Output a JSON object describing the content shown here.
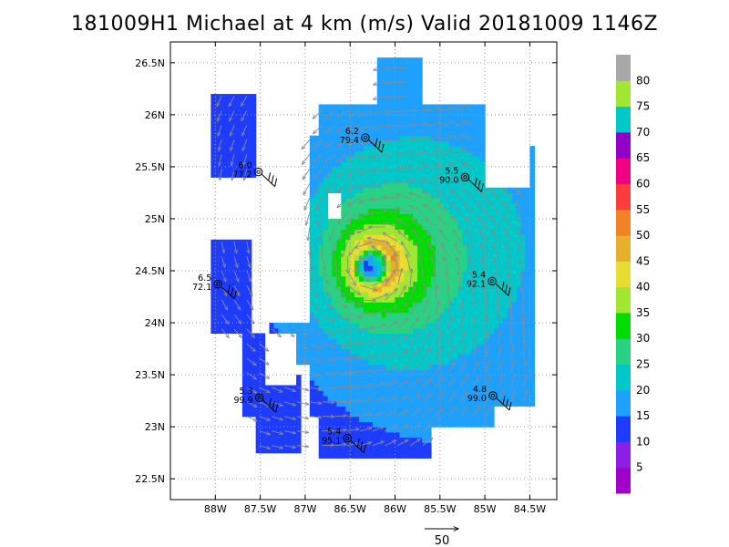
{
  "chart_data": {
    "type": "heatmap",
    "title": "181009H1 Michael at 4 km (m/s) Valid 20181009 1146Z",
    "xlabel": "",
    "ylabel": "",
    "xlim": [
      -88.5,
      -84.2
    ],
    "ylim": [
      22.3,
      26.7
    ],
    "x_ticks": [
      {
        "value": -88.0,
        "label": "88W"
      },
      {
        "value": -87.5,
        "label": "87.5W"
      },
      {
        "value": -87.0,
        "label": "87W"
      },
      {
        "value": -86.5,
        "label": "86.5W"
      },
      {
        "value": -86.0,
        "label": "86W"
      },
      {
        "value": -85.5,
        "label": "85.5W"
      },
      {
        "value": -85.0,
        "label": "85W"
      },
      {
        "value": -84.5,
        "label": "84.5W"
      }
    ],
    "y_ticks": [
      {
        "value": 22.5,
        "label": "22.5N"
      },
      {
        "value": 23.0,
        "label": "23N"
      },
      {
        "value": 23.5,
        "label": "23.5N"
      },
      {
        "value": 24.0,
        "label": "24N"
      },
      {
        "value": 24.5,
        "label": "24.5N"
      },
      {
        "value": 25.0,
        "label": "25N"
      },
      {
        "value": 25.5,
        "label": "25.5N"
      },
      {
        "value": 26.0,
        "label": "26N"
      },
      {
        "value": 26.5,
        "label": "26.5N"
      }
    ],
    "grid": true,
    "colorbar": {
      "levels": [
        0,
        5,
        10,
        15,
        20,
        25,
        30,
        35,
        40,
        45,
        50,
        55,
        60,
        65,
        70,
        75,
        80,
        85
      ],
      "labels": [
        "5",
        "10",
        "15",
        "20",
        "25",
        "30",
        "35",
        "40",
        "45",
        "50",
        "55",
        "60",
        "65",
        "70",
        "75",
        "80"
      ],
      "colors": [
        "#a000c8",
        "#8c1ee6",
        "#1e3cff",
        "#1ea0ff",
        "#00c8c8",
        "#28d282",
        "#00dc00",
        "#a0e632",
        "#e6dc32",
        "#e6af2d",
        "#f08228",
        "#fa3c3c",
        "#f00082",
        "#9000c8",
        "#00c8c8",
        "#a0e632",
        "#a8a8a8"
      ]
    },
    "storm_center": {
      "lon": -86.25,
      "lat": 24.55
    },
    "stations": [
      {
        "lon": -86.33,
        "lat": 25.78,
        "line1": "6.2",
        "line2": "79.4"
      },
      {
        "lon": -87.52,
        "lat": 25.45,
        "line1": "6.0",
        "line2": "77.2"
      },
      {
        "lon": -85.22,
        "lat": 25.4,
        "line1": "5.5",
        "line2": "90.0"
      },
      {
        "lon": -87.97,
        "lat": 24.37,
        "line1": "6.5",
        "line2": "72.1"
      },
      {
        "lon": -84.92,
        "lat": 24.4,
        "line1": "5.4",
        "line2": "92.1"
      },
      {
        "lon": -84.91,
        "lat": 23.3,
        "line1": "4.8",
        "line2": "99.0"
      },
      {
        "lon": -87.51,
        "lat": 23.28,
        "line1": "5.3",
        "line2": "99.9"
      },
      {
        "lon": -86.53,
        "lat": 22.89,
        "line1": "5.4",
        "line2": "95.1"
      }
    ],
    "reference_vector": {
      "label": "50"
    }
  }
}
